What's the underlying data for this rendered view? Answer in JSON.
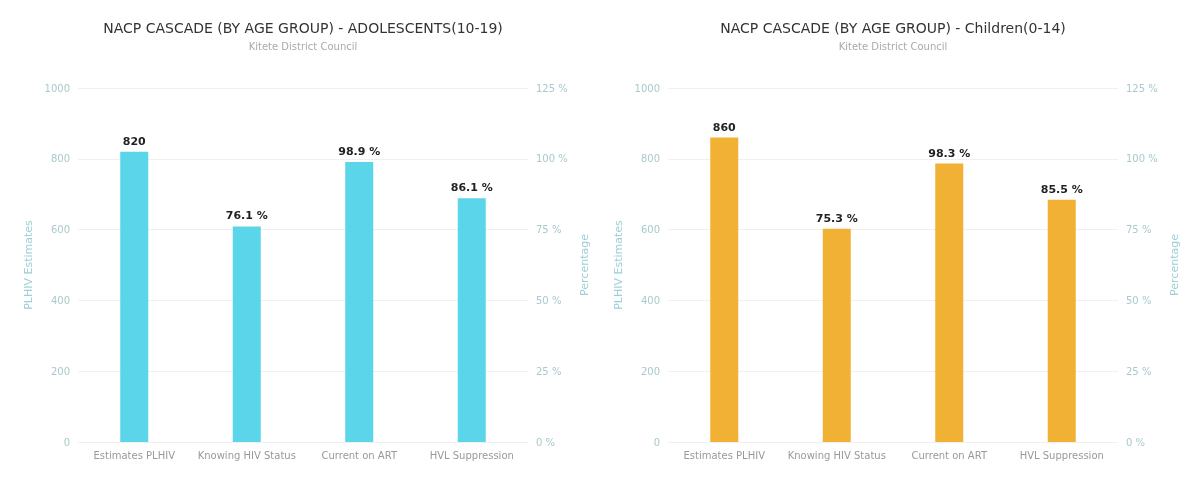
{
  "chart_data": [
    {
      "type": "bar",
      "title": "NACP CASCADE (BY AGE GROUP) - ADOLESCENTS(10-19)",
      "subtitle": "Kitete District Council",
      "ylabel": "PLHIV Estimates",
      "y2label": "Percentage",
      "categories": [
        "Estimates PLHIV",
        "Knowing HIV Status",
        "Current on ART",
        "HVL Suppression"
      ],
      "series": [
        {
          "color": "#5ad5ea",
          "values": [
            820,
            null,
            null,
            null
          ],
          "value_labels": [
            "820",
            null,
            null,
            null
          ]
        },
        {
          "color": "#5ad5ea",
          "axis": "y2",
          "values": [
            null,
            76.1,
            98.9,
            86.1
          ],
          "value_labels": [
            null,
            "76.1 %",
            "98.9 %",
            "86.1 %"
          ]
        }
      ],
      "ylim": [
        0,
        1000
      ],
      "yticks": [
        0,
        200,
        400,
        600,
        800,
        1000
      ],
      "y2lim": [
        0,
        125
      ],
      "y2ticks": [
        {
          "value": 0,
          "label": "0 %"
        },
        {
          "value": 25,
          "label": "25 %"
        },
        {
          "value": 50,
          "label": "50 %"
        },
        {
          "value": 75,
          "label": "75 %"
        },
        {
          "value": 100,
          "label": "100 %"
        },
        {
          "value": 125,
          "label": "125 %"
        }
      ],
      "grid": "y"
    },
    {
      "type": "bar",
      "title": "NACP CASCADE (BY AGE GROUP) - Children(0-14)",
      "subtitle": "Kitete District Council",
      "ylabel": "PLHIV Estimates",
      "y2label": "Percentage",
      "categories": [
        "Estimates PLHIV",
        "Knowing HIV Status",
        "Current on ART",
        "HVL Suppression"
      ],
      "series": [
        {
          "color": "#f0b134",
          "values": [
            860,
            null,
            null,
            null
          ],
          "value_labels": [
            "860",
            null,
            null,
            null
          ]
        },
        {
          "color": "#f0b134",
          "axis": "y2",
          "values": [
            null,
            75.3,
            98.3,
            85.5
          ],
          "value_labels": [
            null,
            "75.3 %",
            "98.3 %",
            "85.5 %"
          ]
        }
      ],
      "ylim": [
        0,
        1000
      ],
      "yticks": [
        0,
        200,
        400,
        600,
        800,
        1000
      ],
      "y2lim": [
        0,
        125
      ],
      "y2ticks": [
        {
          "value": 0,
          "label": "0 %"
        },
        {
          "value": 25,
          "label": "25 %"
        },
        {
          "value": 50,
          "label": "50 %"
        },
        {
          "value": 75,
          "label": "75 %"
        },
        {
          "value": 100,
          "label": "100 %"
        },
        {
          "value": 125,
          "label": "125 %"
        }
      ],
      "grid": "y"
    }
  ]
}
